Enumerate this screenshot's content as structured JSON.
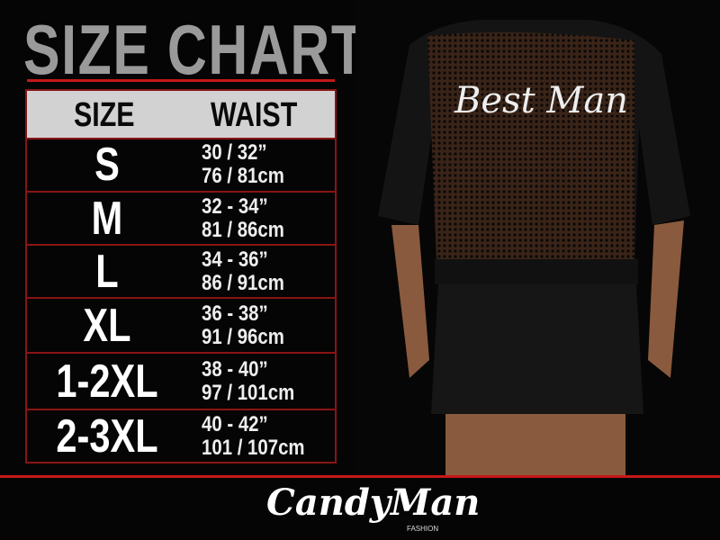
{
  "title": "SIZE CHART",
  "table": {
    "headers": [
      "SIZE",
      "WAIST"
    ],
    "rows": [
      {
        "size": "S",
        "inches": "30 / 32”",
        "cm": "76 / 81cm"
      },
      {
        "size": "M",
        "inches": "32 - 34”",
        "cm": "81 / 86cm"
      },
      {
        "size": "L",
        "inches": "34 - 36”",
        "cm": "86 / 91cm"
      },
      {
        "size": "XL",
        "inches": "36 - 38”",
        "cm": "91 / 96cm"
      },
      {
        "size": "1-2XL",
        "inches": "38 - 40”",
        "cm": "97 / 101cm"
      },
      {
        "size": "2-3XL",
        "inches": "40 - 42”",
        "cm": "101 / 107cm"
      }
    ]
  },
  "photo": {
    "robe_text": "Best Man"
  },
  "brand": {
    "name": "CandyMan",
    "sub": "FASHION"
  },
  "colors": {
    "accent": "#c41818",
    "header_bg": "#d2d2d2",
    "title": "#9a9a9a"
  }
}
